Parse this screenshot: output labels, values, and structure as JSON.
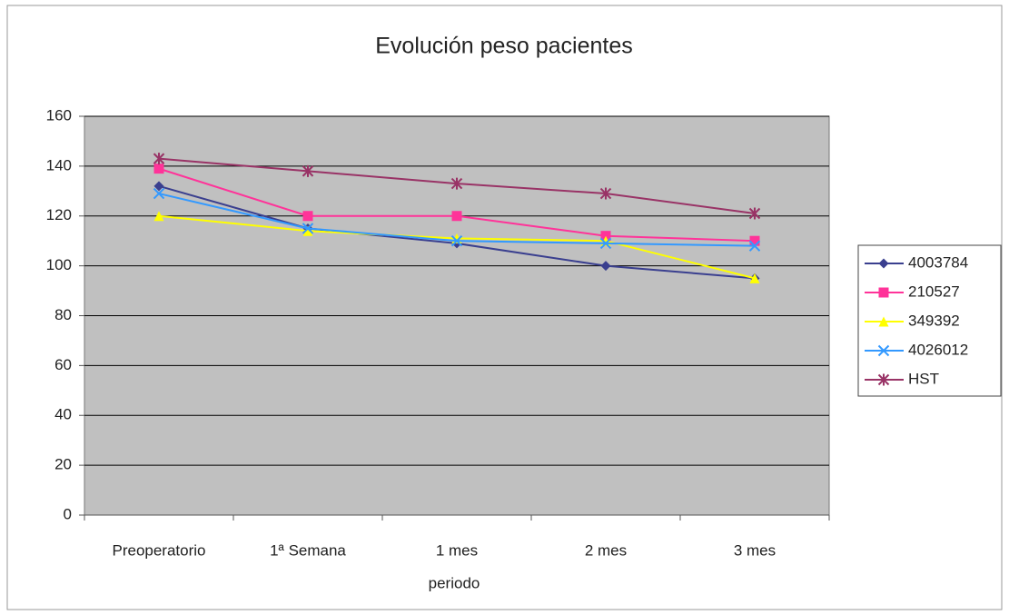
{
  "chart_data": {
    "type": "line",
    "title": "Evolución peso pacientes",
    "x_label": "periodo",
    "categories": [
      "Preoperatorio",
      "1ª Semana",
      "1 mes",
      "2 mes",
      "3 mes"
    ],
    "series": [
      {
        "name": "4003784",
        "color": "#3a3f8f",
        "marker": "diamond",
        "values": [
          132,
          115,
          109,
          100,
          95
        ]
      },
      {
        "name": "210527",
        "color": "#ff3399",
        "marker": "square",
        "values": [
          139,
          120,
          120,
          112,
          110
        ]
      },
      {
        "name": "349392",
        "color": "#ffff00",
        "marker": "triangle",
        "values": [
          120,
          114,
          111,
          110,
          95
        ]
      },
      {
        "name": "4026012",
        "color": "#3399ff",
        "marker": "x",
        "values": [
          129,
          115,
          110,
          109,
          108
        ]
      },
      {
        "name": "HST",
        "color": "#993366",
        "marker": "star",
        "values": [
          143,
          138,
          133,
          129,
          121
        ]
      }
    ],
    "ylim": [
      0,
      160
    ],
    "yticks": [
      0,
      20,
      40,
      60,
      80,
      100,
      120,
      140,
      160
    ],
    "grid": true,
    "legend": "right"
  }
}
